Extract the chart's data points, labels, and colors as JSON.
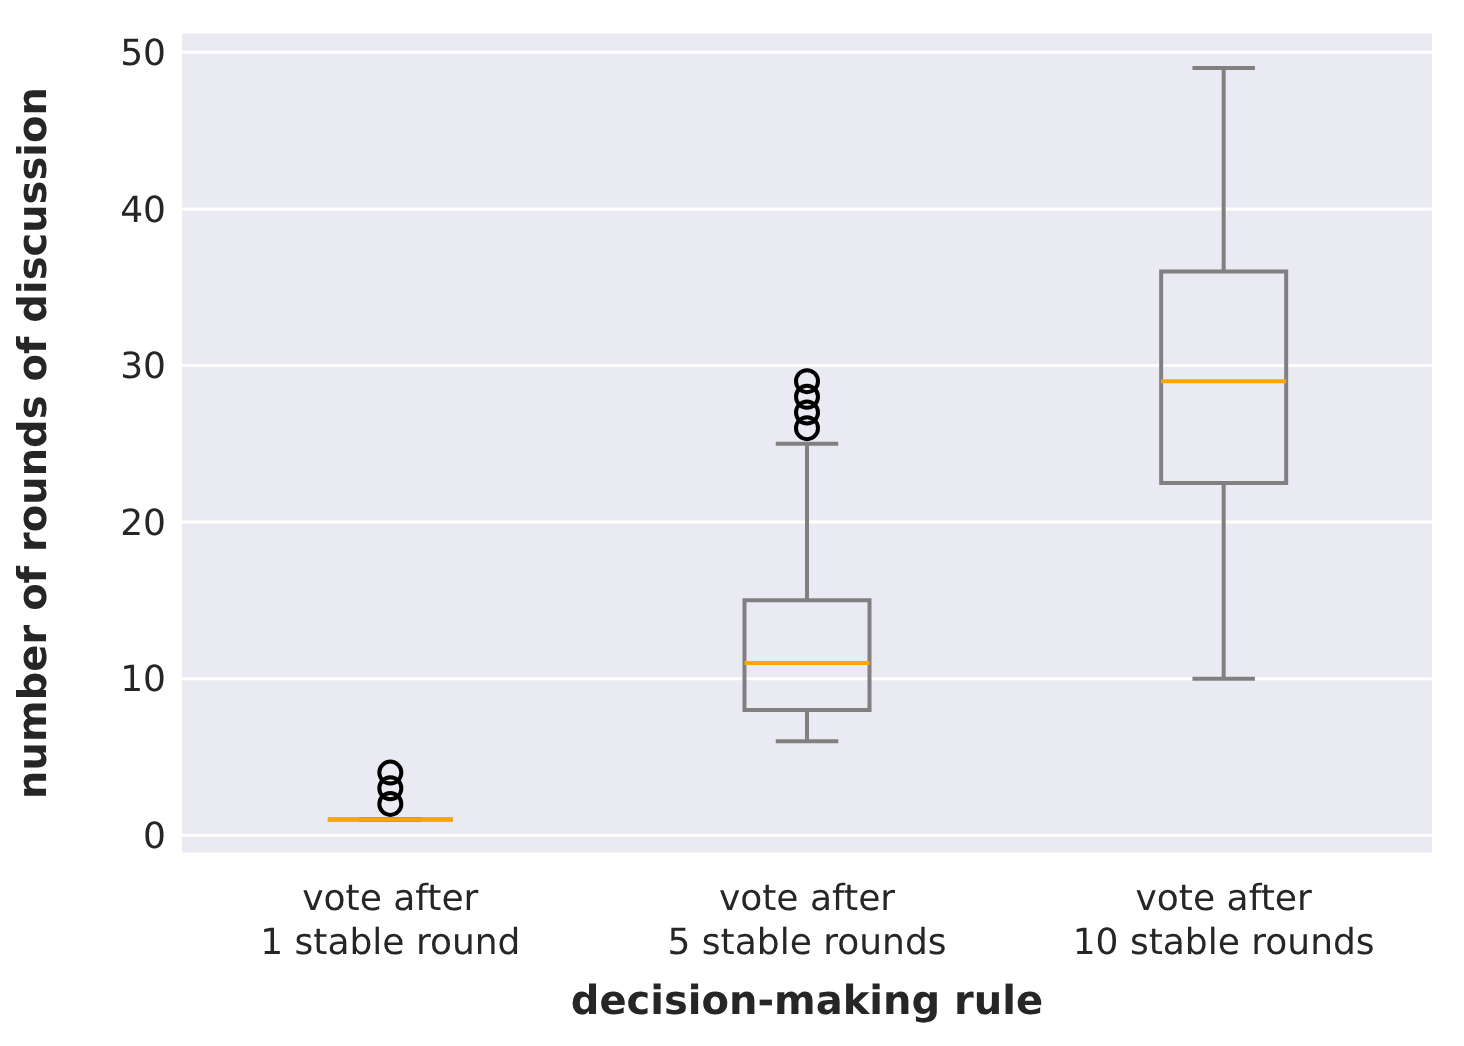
{
  "chart_data": {
    "type": "box",
    "xlabel": "decision-making rule",
    "ylabel": "number of rounds of discussion",
    "categories": [
      "vote after\n1 stable round",
      "vote after\n5 stable rounds",
      "vote after\n10 stable rounds"
    ],
    "boxes": [
      {
        "low": 1,
        "q1": 1,
        "median": 1,
        "q3": 1,
        "high": 1,
        "outliers": [
          2,
          3,
          4
        ]
      },
      {
        "low": 6,
        "q1": 8,
        "median": 11,
        "q3": 15,
        "high": 25,
        "outliers": [
          26,
          27,
          28,
          29
        ]
      },
      {
        "low": 10,
        "q1": 22.5,
        "median": 29,
        "q3": 36,
        "high": 49
      }
    ],
    "color": "#808080",
    "ylim": [
      -1.2,
      51.3
    ],
    "yticks": [
      0,
      10,
      20,
      30,
      40,
      50
    ],
    "grid": "y"
  }
}
